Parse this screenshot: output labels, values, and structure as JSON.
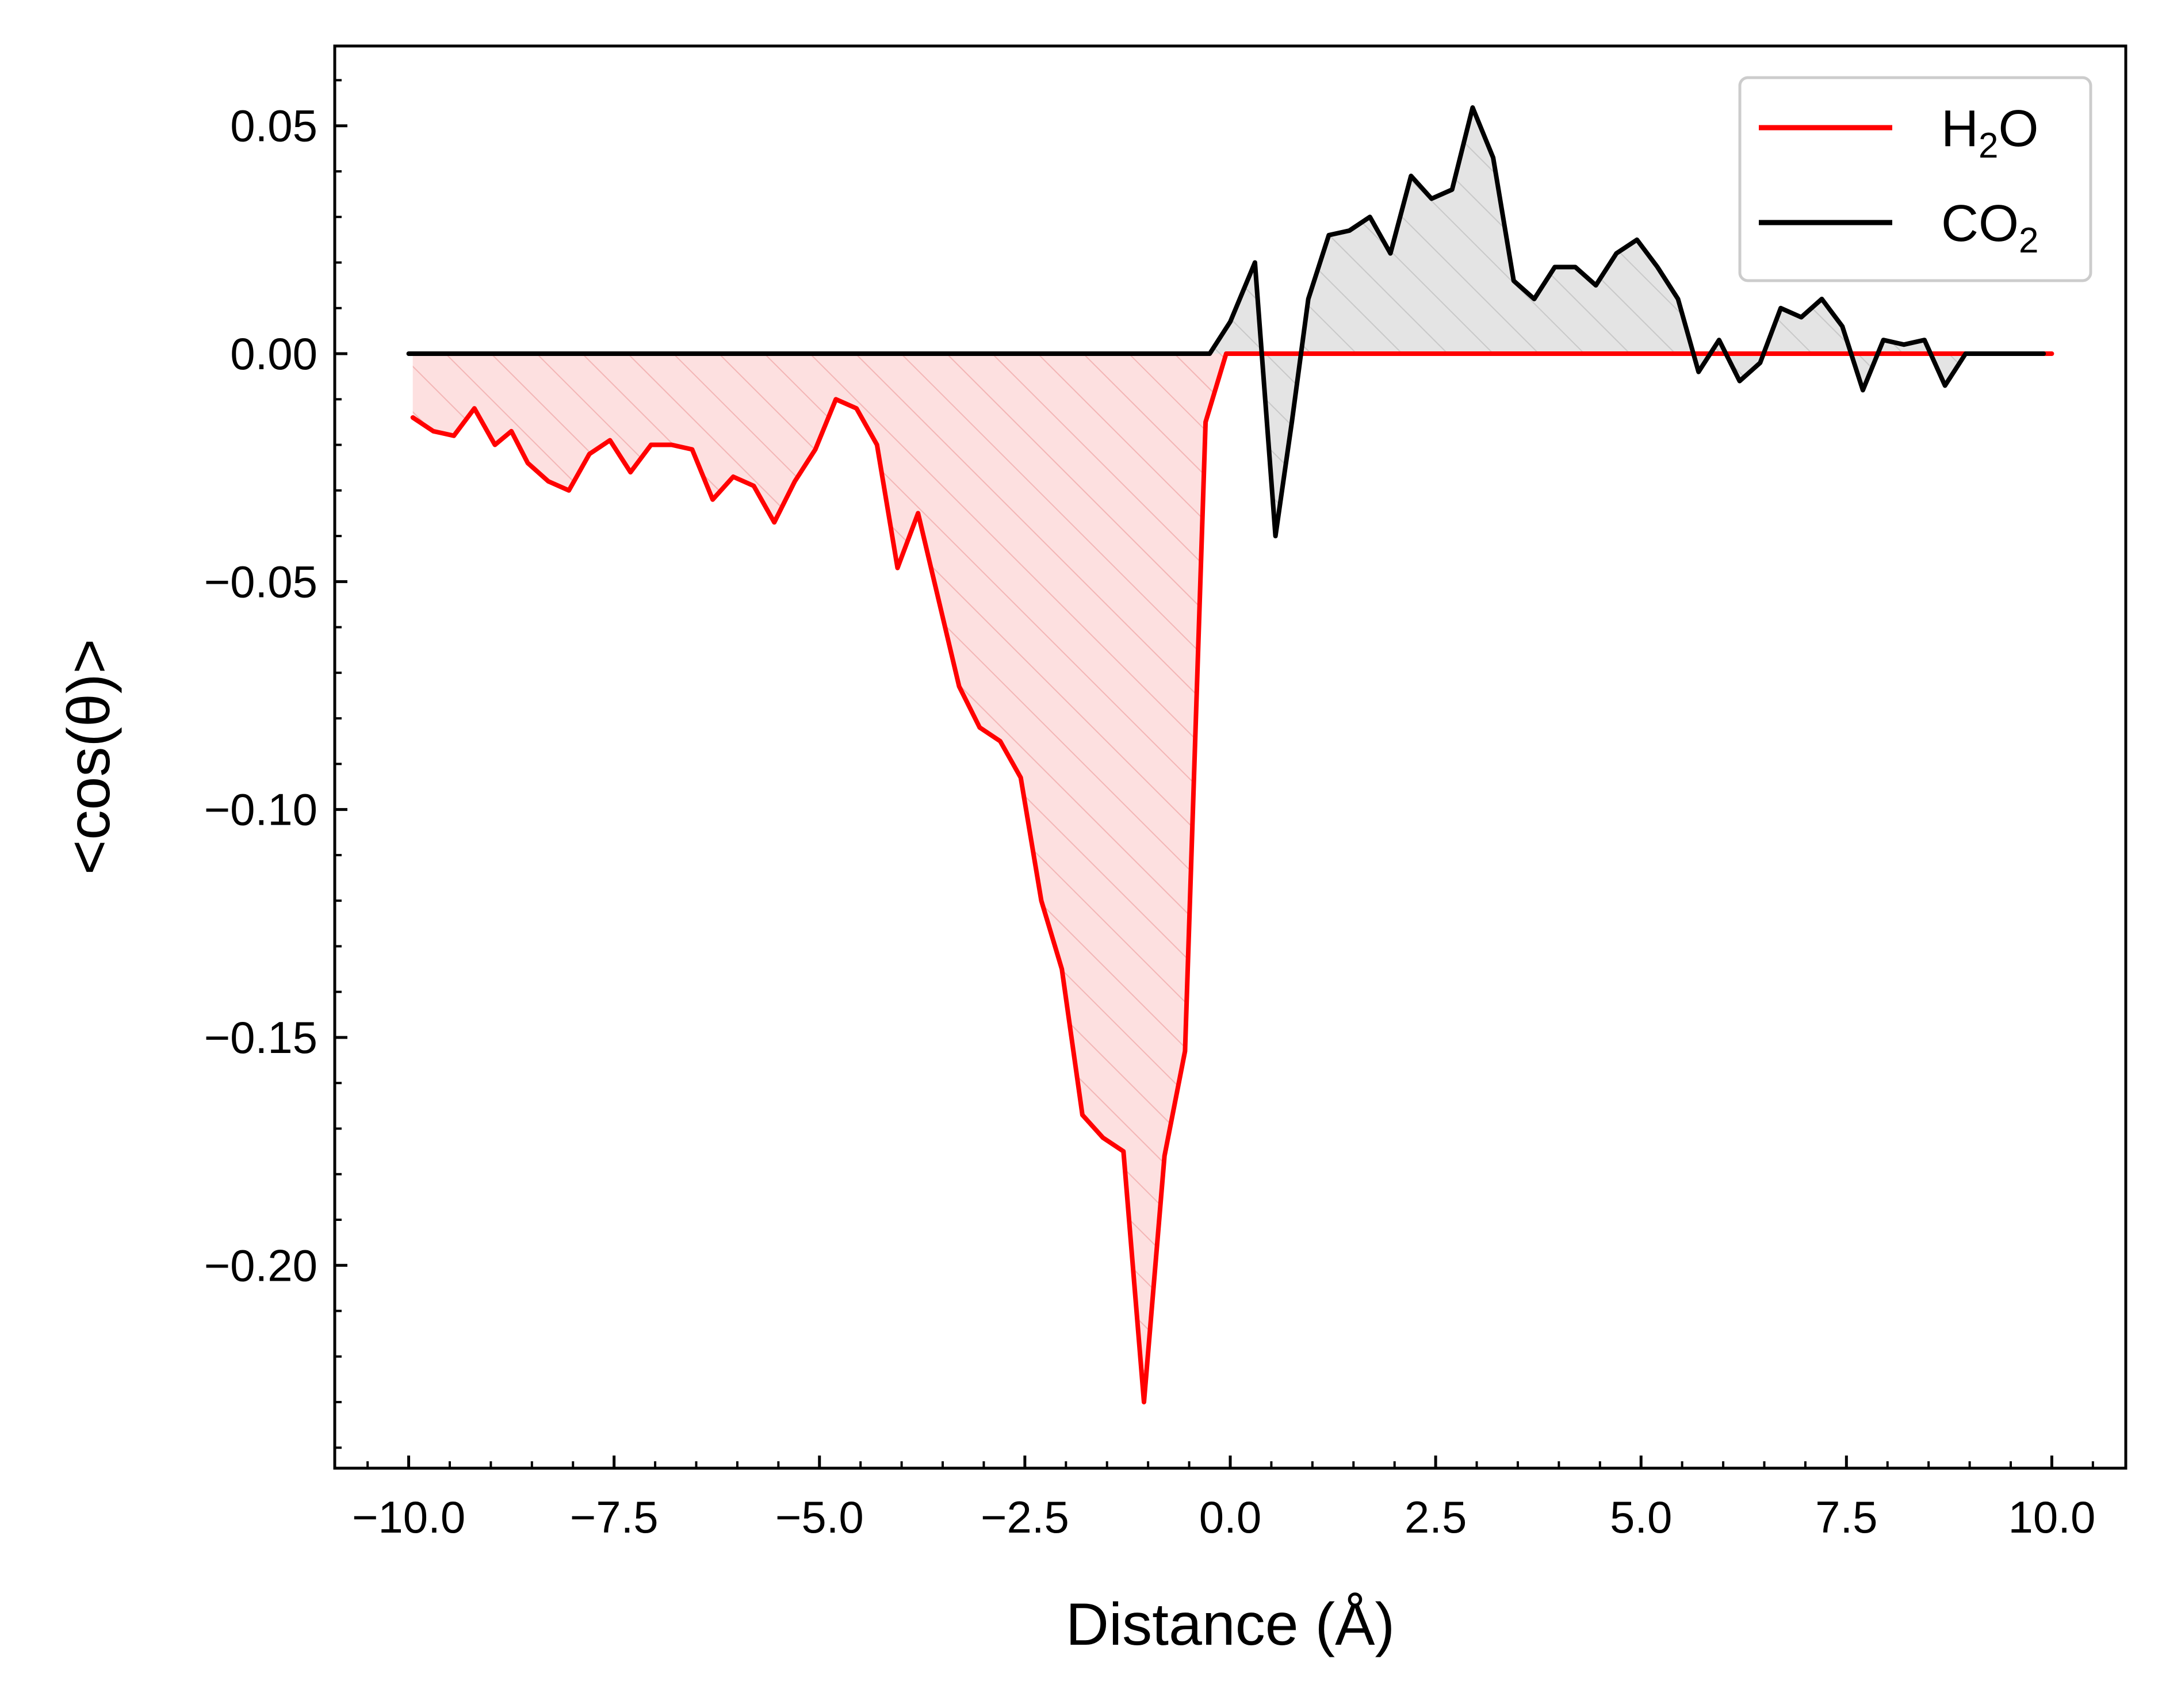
{
  "chart_data": {
    "type": "line",
    "title": "",
    "xlabel": "Distance  (Å)",
    "ylabel": "<cos(θ)>",
    "xlim": [
      -10.9,
      10.9
    ],
    "ylim": [
      -0.2445,
      0.0675
    ],
    "x_ticks": [
      -10.0,
      -7.5,
      -5.0,
      -2.5,
      0.0,
      2.5,
      5.0,
      7.5,
      10.0
    ],
    "x_tick_labels": [
      "−10.0",
      "−7.5",
      "−5.0",
      "−2.5",
      "0.0",
      "2.5",
      "5.0",
      "7.5",
      "10.0"
    ],
    "y_ticks": [
      0.05,
      0.0,
      -0.05,
      -0.1,
      -0.15,
      -0.2
    ],
    "y_tick_labels": [
      "0.05",
      "0.00",
      "−0.05",
      "−0.10",
      "−0.15",
      "−0.20"
    ],
    "grid": false,
    "legend_position": "top-right",
    "fill_under_curves": true,
    "fill_hatch": "diagonal",
    "series": [
      {
        "name": "H2O",
        "legend_main": "H",
        "legend_sub": "2",
        "legend_tail": "O",
        "color": "#ff0000",
        "fill_color": "#fde0e0",
        "hatch_color": "#f3b5b5",
        "x": [
          -9.95,
          -9.7,
          -9.45,
          -9.2,
          -8.95,
          -8.75,
          -8.55,
          -8.3,
          -8.05,
          -7.8,
          -7.55,
          -7.3,
          -7.05,
          -6.8,
          -6.55,
          -6.3,
          -6.05,
          -5.8,
          -5.55,
          -5.3,
          -5.05,
          -4.8,
          -4.55,
          -4.3,
          -4.05,
          -3.8,
          -3.55,
          -3.3,
          -3.05,
          -2.8,
          -2.55,
          -2.3,
          -2.05,
          -1.8,
          -1.55,
          -1.3,
          -1.05,
          -0.8,
          -0.55,
          -0.3,
          -0.05,
          0.2,
          0.55,
          10.0
        ],
        "y": [
          -0.014,
          -0.017,
          -0.018,
          -0.012,
          -0.02,
          -0.017,
          -0.024,
          -0.028,
          -0.03,
          -0.022,
          -0.019,
          -0.026,
          -0.02,
          -0.02,
          -0.021,
          -0.032,
          -0.027,
          -0.029,
          -0.037,
          -0.028,
          -0.021,
          -0.01,
          -0.012,
          -0.02,
          -0.047,
          -0.035,
          -0.054,
          -0.073,
          -0.082,
          -0.085,
          -0.093,
          -0.12,
          -0.135,
          -0.167,
          -0.172,
          -0.175,
          -0.23,
          -0.176,
          -0.153,
          -0.015,
          0.0,
          0.0,
          0.0,
          0.0
        ]
      },
      {
        "name": "CO2",
        "legend_main": "CO",
        "legend_sub": "2",
        "legend_tail": "",
        "color": "#000000",
        "fill_color": "#e4e4e4",
        "hatch_color": "#c8c8c8",
        "x": [
          -10.0,
          -0.25,
          0.0,
          0.3,
          0.55,
          0.75,
          0.95,
          1.2,
          1.45,
          1.7,
          1.95,
          2.2,
          2.45,
          2.7,
          2.95,
          3.2,
          3.45,
          3.7,
          3.95,
          4.2,
          4.45,
          4.7,
          4.95,
          5.2,
          5.45,
          5.7,
          5.95,
          6.2,
          6.45,
          6.7,
          6.95,
          7.2,
          7.45,
          7.7,
          7.95,
          8.2,
          8.45,
          8.7,
          8.95,
          9.2,
          9.45,
          9.7,
          9.9
        ],
        "y": [
          0.0,
          0.0,
          0.007,
          0.02,
          -0.04,
          -0.015,
          0.012,
          0.026,
          0.027,
          0.03,
          0.022,
          0.039,
          0.034,
          0.036,
          0.054,
          0.043,
          0.016,
          0.012,
          0.019,
          0.019,
          0.015,
          0.022,
          0.025,
          0.019,
          0.012,
          -0.004,
          0.003,
          -0.006,
          -0.002,
          0.01,
          0.008,
          0.012,
          0.006,
          -0.008,
          0.003,
          0.002,
          0.003,
          -0.007,
          0.0,
          0.0,
          0.0,
          0.0,
          0.0
        ]
      }
    ]
  }
}
